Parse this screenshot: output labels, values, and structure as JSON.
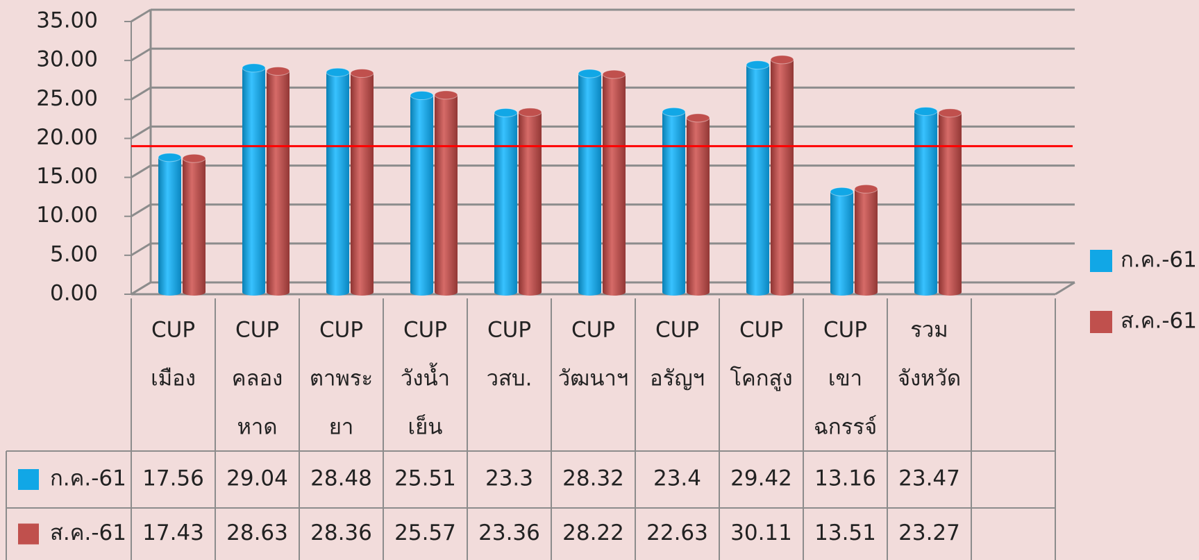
{
  "chart_data": {
    "type": "bar",
    "categories": [
      [
        "CUP",
        "เมือง"
      ],
      [
        "CUP",
        "คลอง",
        "หาด"
      ],
      [
        "CUP",
        "ตาพระ",
        "ยา"
      ],
      [
        "CUP",
        "วังน้ำ",
        "เย็น"
      ],
      [
        "CUP",
        "วสบ."
      ],
      [
        "CUP",
        "วัฒนาฯ"
      ],
      [
        "CUP",
        "อรัญฯ"
      ],
      [
        "CUP",
        "โคกสูง"
      ],
      [
        "CUP",
        "เขา",
        "ฉกรรจ์"
      ],
      [
        "รวม",
        "จังหวัด"
      ]
    ],
    "series": [
      {
        "name": "ก.ค.-61",
        "color": "#11a7e6",
        "values": [
          17.56,
          29.04,
          28.48,
          25.51,
          23.3,
          28.32,
          23.4,
          29.42,
          13.16,
          23.47
        ]
      },
      {
        "name": "ส.ค.-61",
        "color": "#c0504d",
        "values": [
          17.43,
          28.63,
          28.36,
          25.57,
          23.36,
          28.22,
          22.63,
          30.11,
          13.51,
          23.27
        ]
      }
    ],
    "ylim": [
      0,
      35
    ],
    "yticks": [
      {
        "value": 0,
        "label": "0.00"
      },
      {
        "value": 5,
        "label": "5.00"
      },
      {
        "value": 10,
        "label": "10.00"
      },
      {
        "value": 15,
        "label": "15.00"
      },
      {
        "value": 20,
        "label": "20.00"
      },
      {
        "value": 25,
        "label": "25.00"
      },
      {
        "value": 30,
        "label": "30.00"
      },
      {
        "value": 35,
        "label": "35.00"
      }
    ],
    "grid": true,
    "reference_line": {
      "value": 19,
      "color": "#ff0000"
    },
    "legend": "right",
    "data_table": true
  }
}
